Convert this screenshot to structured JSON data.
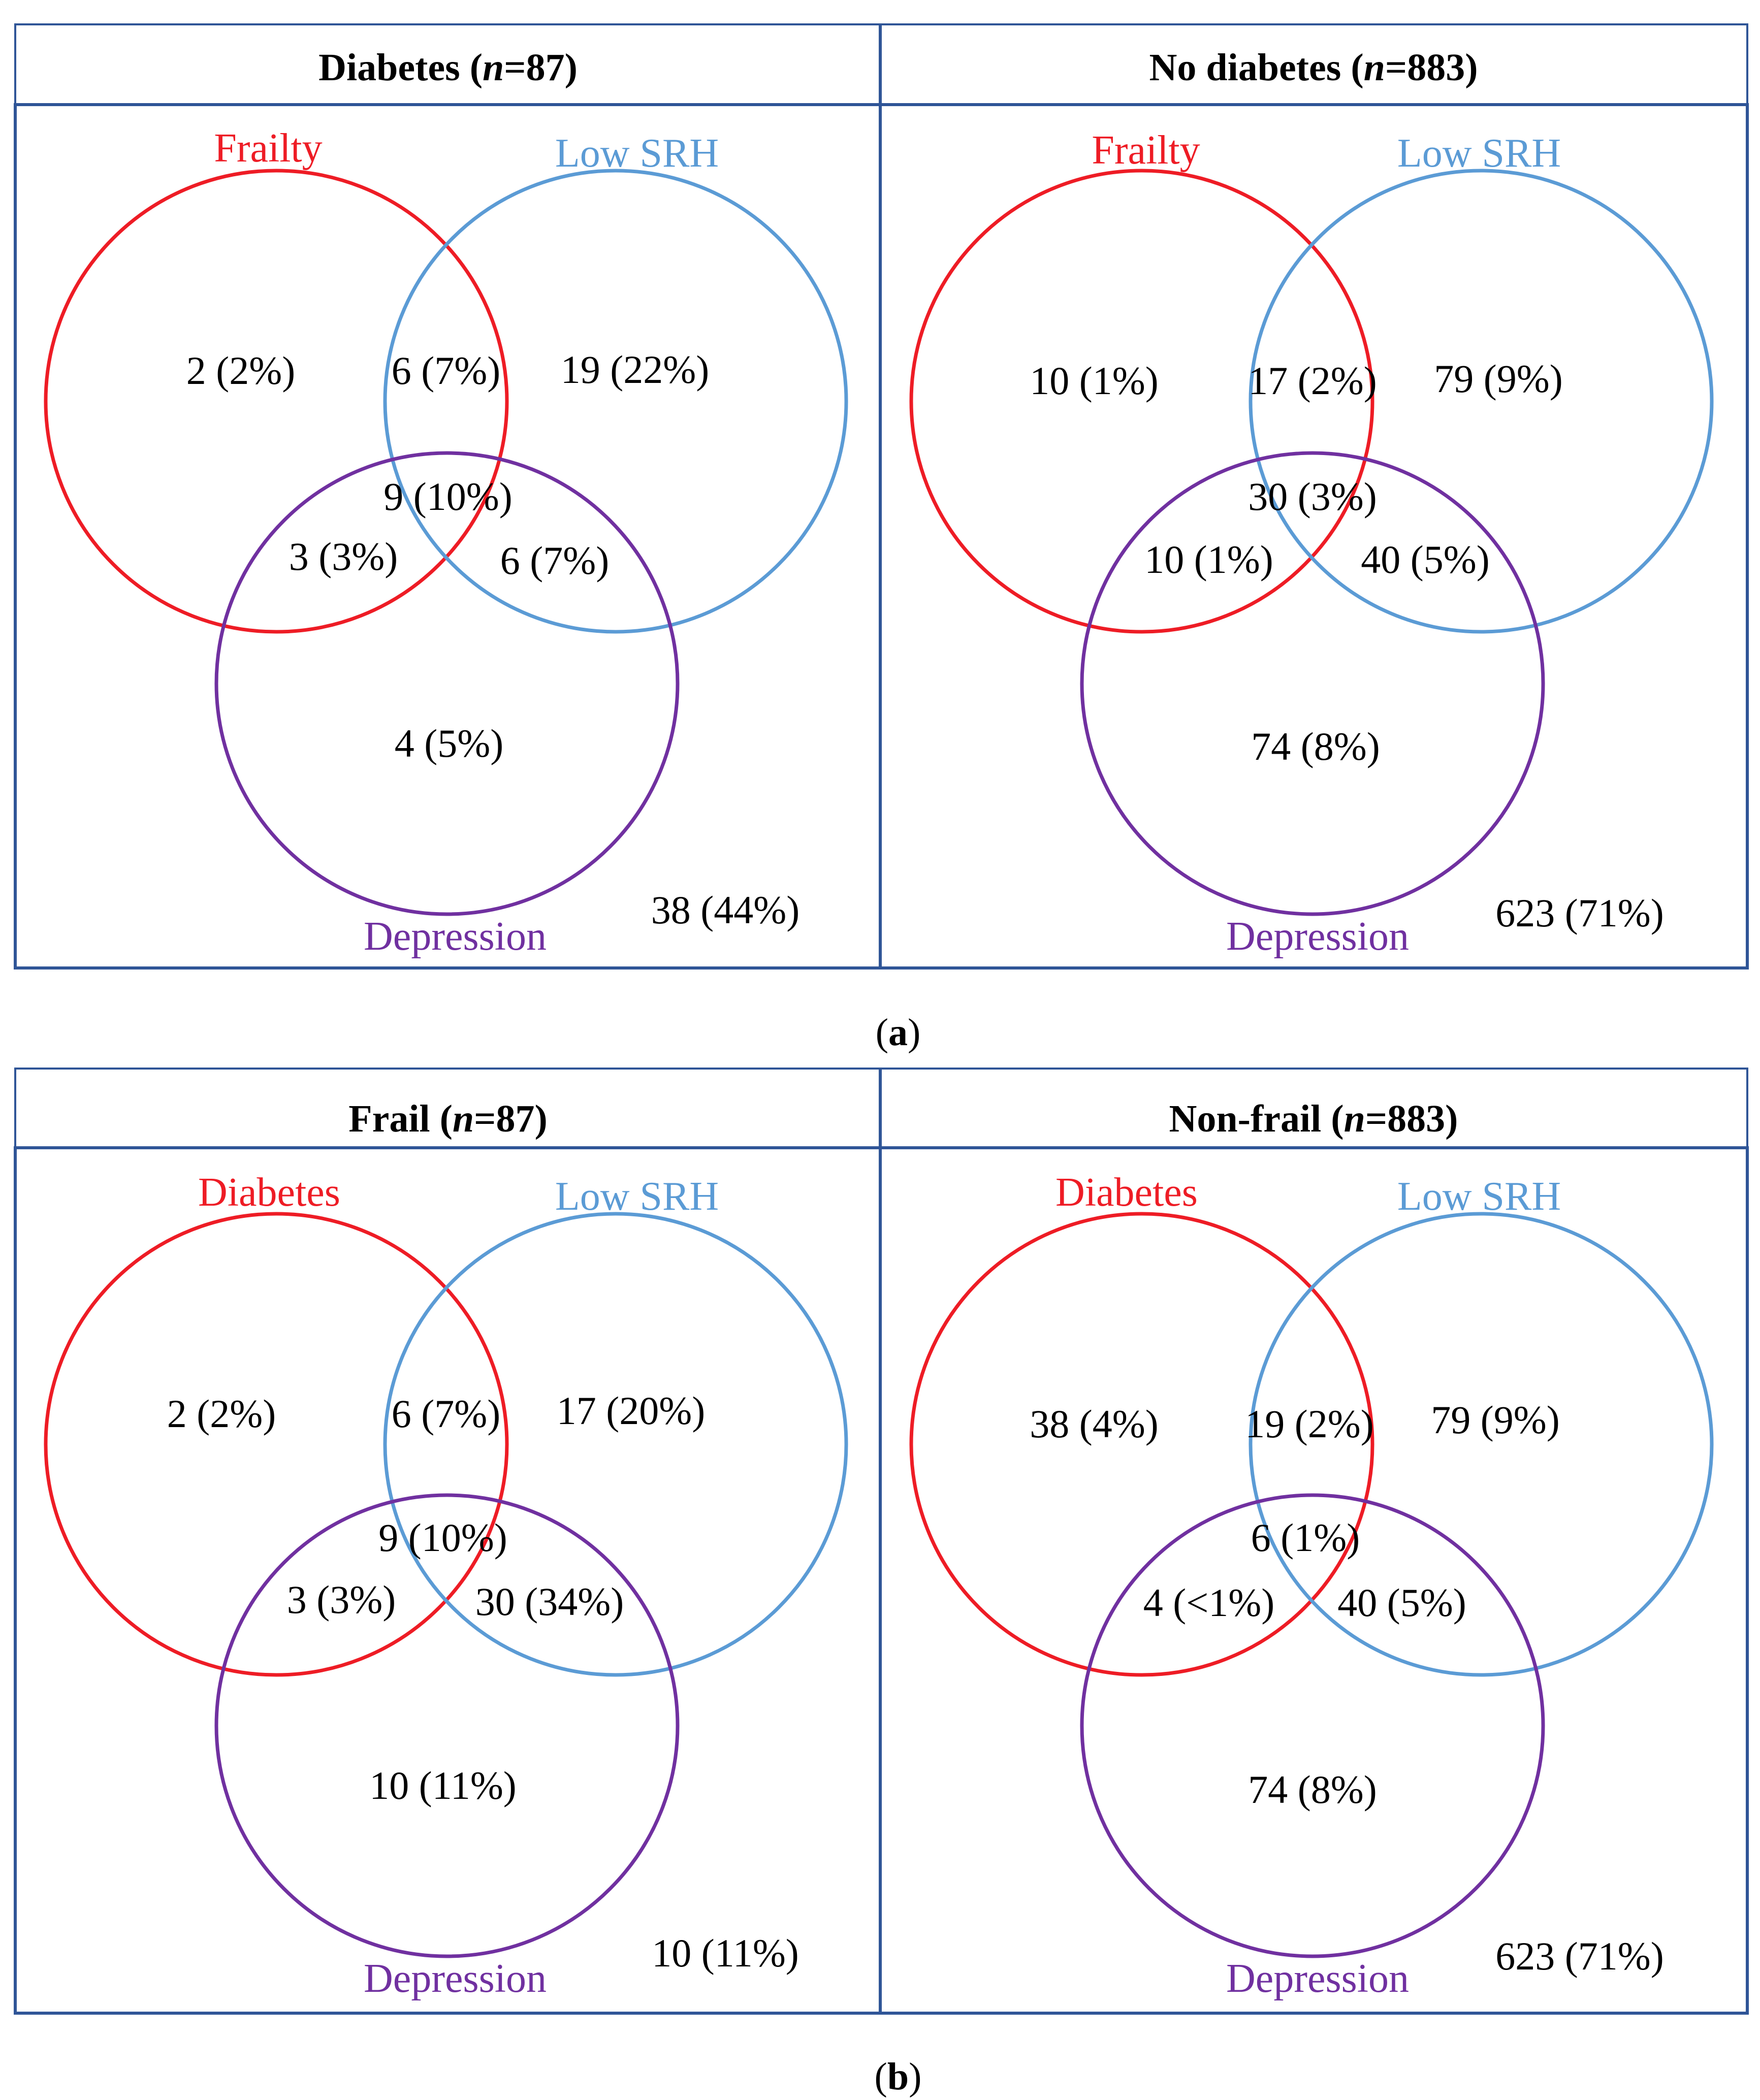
{
  "panels": [
    {
      "caption_letter": "a",
      "left": {
        "header": {
          "prefix": "Diabetes (",
          "n": "n",
          "suffix": "=87)"
        },
        "sets": {
          "a": "Frailty",
          "b": "Low SRH",
          "c": "Depression"
        },
        "regions": {
          "a_only": "2 (2%)",
          "ab": "6 (7%)",
          "b_only": "19 (22%)",
          "abc": "9 (10%)",
          "ac": "3 (3%)",
          "bc": "6 (7%)",
          "c_only": "4 (5%)",
          "none": "38 (44%)"
        }
      },
      "right": {
        "header": {
          "prefix": "No diabetes (",
          "n": "n",
          "suffix": "=883)"
        },
        "sets": {
          "a": "Frailty",
          "b": "Low SRH",
          "c": "Depression"
        },
        "regions": {
          "a_only": "10 (1%)",
          "ab": "17 (2%)",
          "b_only": "79 (9%)",
          "abc": "30 (3%)",
          "ac": "10 (1%)",
          "bc": "40 (5%)",
          "c_only": "74 (8%)",
          "none": "623 (71%)"
        }
      }
    },
    {
      "caption_letter": "b",
      "left": {
        "header": {
          "prefix": "Frail (",
          "n": "n",
          "suffix": "=87)"
        },
        "sets": {
          "a": "Diabetes",
          "b": "Low SRH",
          "c": "Depression"
        },
        "regions": {
          "a_only": "2 (2%)",
          "ab": "6 (7%)",
          "b_only": "17 (20%)",
          "abc": "9 (10%)",
          "ac": "3 (3%)",
          "bc": "30 (34%)",
          "c_only": "10 (11%)",
          "none": "10 (11%)"
        }
      },
      "right": {
        "header": {
          "prefix": "Non-frail (",
          "n": "n",
          "suffix": "=883)"
        },
        "sets": {
          "a": "Diabetes",
          "b": "Low SRH",
          "c": "Depression"
        },
        "regions": {
          "a_only": "38 (4%)",
          "ab": "19 (2%)",
          "b_only": "79 (9%)",
          "abc": "6 (1%)",
          "ac": "4 (<1%)",
          "bc": "40 (5%)",
          "c_only": "74 (8%)",
          "none": "623 (71%)"
        }
      }
    }
  ],
  "colors": {
    "set_a": "#ee1c25",
    "set_b": "#5b9bd5",
    "set_c": "#7030a0",
    "border": "#2f5597"
  }
}
